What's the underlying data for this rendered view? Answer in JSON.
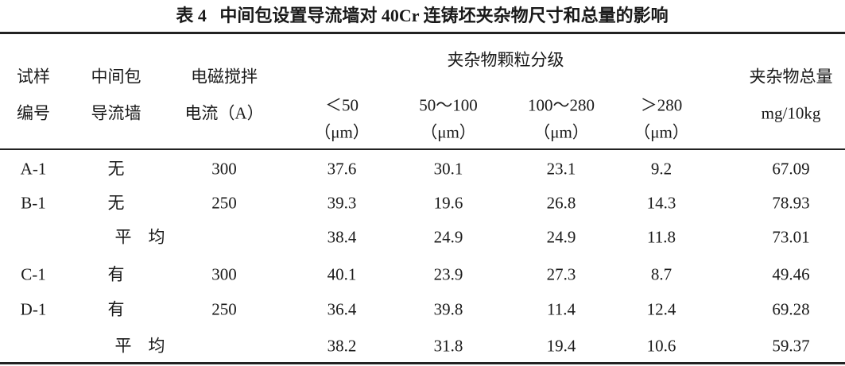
{
  "title": "表 4   中间包设置导流墙对 40Cr 连铸坯夹杂物尺寸和总量的影响",
  "table": {
    "header": {
      "group": "夹杂物颗粒分级",
      "columns": [
        {
          "lines": [
            "试样",
            "编号"
          ]
        },
        {
          "lines": [
            "中间包",
            "导流墙"
          ]
        },
        {
          "lines": [
            "电磁搅拌",
            "电流（A）"
          ]
        },
        {
          "lines": [
            "＜50",
            "（μm）"
          ]
        },
        {
          "lines": [
            "50～100",
            "（μm）"
          ]
        },
        {
          "lines": [
            "100～280",
            "（μm）"
          ]
        },
        {
          "lines": [
            "＞280",
            "（μm）"
          ]
        },
        {
          "lines": [
            "夹杂物总量",
            "mg/10kg"
          ]
        }
      ]
    },
    "rows": [
      {
        "sample": "A-1",
        "wall": "无",
        "current": 300,
        "values": [
          37.6,
          30.1,
          23.1,
          9.2
        ],
        "total": 67.09
      },
      {
        "sample": "B-1",
        "wall": "无",
        "current": 250,
        "values": [
          39.3,
          19.6,
          26.8,
          14.3
        ],
        "total": 78.93
      },
      {
        "label": "平　均",
        "values": [
          38.4,
          24.9,
          24.9,
          11.8
        ],
        "total": 73.01
      },
      {
        "sample": "C-1",
        "wall": "有",
        "current": 300,
        "values": [
          40.1,
          23.9,
          27.3,
          8.7
        ],
        "total": 49.46
      },
      {
        "sample": "D-1",
        "wall": "有",
        "current": 250,
        "values": [
          36.4,
          39.8,
          11.4,
          12.4
        ],
        "total": 69.28
      },
      {
        "label": "平　均",
        "values": [
          38.2,
          31.8,
          19.4,
          10.6
        ],
        "total": 59.37
      }
    ]
  }
}
